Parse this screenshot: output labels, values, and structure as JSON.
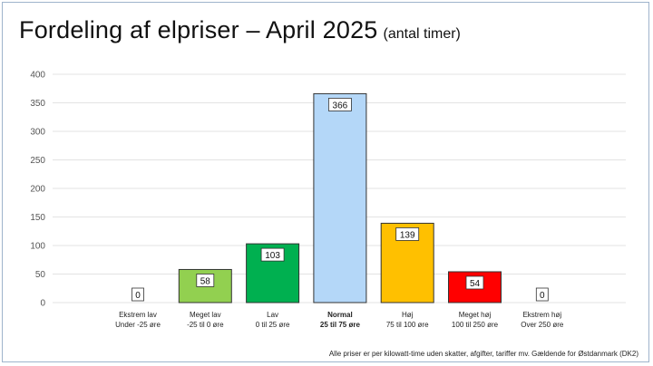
{
  "title": "Fordeling af elpriser – April 2025",
  "subtitle": "(antal timer)",
  "footnote": "Alle priser er per kilowatt-time uden skatter, afgifter, tariffer mv. Gældende for Østdanmark (DK2)",
  "chart_data": {
    "type": "bar",
    "title": "Fordeling af elpriser – April 2025",
    "subtitle": "(antal timer)",
    "categories": [
      {
        "name": "Ekstrem lav",
        "range": "Under -25 øre",
        "bold": false
      },
      {
        "name": "Meget lav",
        "range": "-25 til 0 øre",
        "bold": false
      },
      {
        "name": "Lav",
        "range": "0 til 25 øre",
        "bold": false
      },
      {
        "name": "Normal",
        "range": "25 til 75 øre",
        "bold": true
      },
      {
        "name": "Høj",
        "range": "75 til 100 øre",
        "bold": false
      },
      {
        "name": "Meget høj",
        "range": "100 til 250 øre",
        "bold": false
      },
      {
        "name": "Ekstrem høj",
        "range": "Over 250 øre",
        "bold": false
      }
    ],
    "values": [
      0,
      58,
      103,
      366,
      139,
      54,
      0
    ],
    "colors": [
      "#1565c0",
      "#92d050",
      "#00b050",
      "#b4d7f8",
      "#ffc000",
      "#ff0000",
      "#c00000"
    ],
    "ylim": [
      0,
      400
    ],
    "yticks": [
      0,
      50,
      100,
      150,
      200,
      250,
      300,
      350,
      400
    ],
    "grid": true,
    "legend": "none"
  }
}
